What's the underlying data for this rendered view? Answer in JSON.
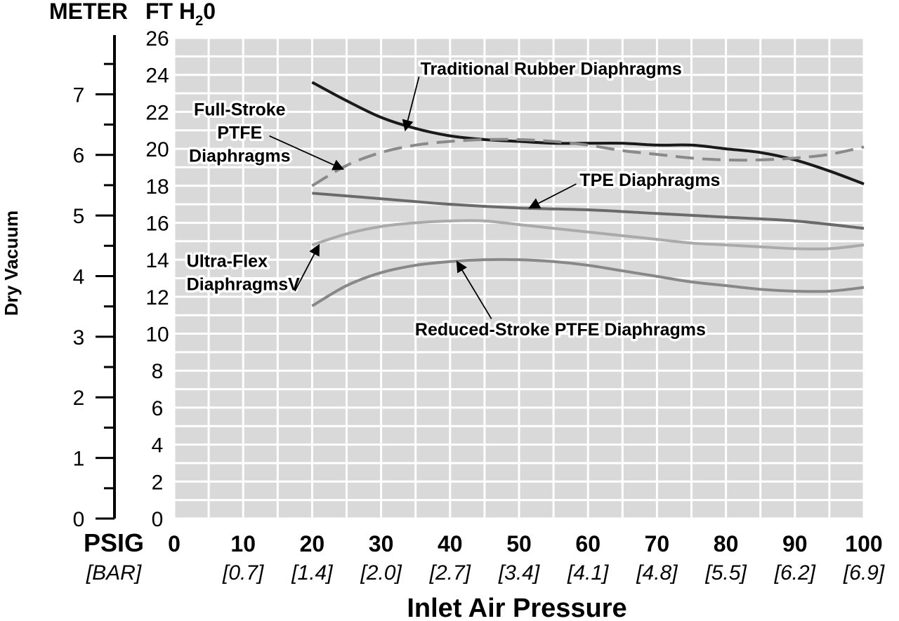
{
  "chart_data": {
    "type": "line",
    "xlabel": "Inlet Air Pressure",
    "ylabel": "Dry Vacuum",
    "x_unit_label": "PSIG",
    "x_unit2_label": "[BAR]",
    "y_unit_left_label": "METER",
    "y_unit_right_label_main": "FT H",
    "y_unit_right_label_sub": "2",
    "y_unit_right_label_tail": "0",
    "xlim": [
      0,
      100
    ],
    "ylim": [
      0,
      26
    ],
    "y2lim": [
      0,
      7.93
    ],
    "grid": true,
    "x_ticks": [
      "0",
      "10",
      "20",
      "30",
      "40",
      "50",
      "60",
      "70",
      "80",
      "90",
      "100"
    ],
    "x_ticks_bar": [
      "",
      "[0.7]",
      "[1.4]",
      "[2.0]",
      "[2.7]",
      "[3.4]",
      "[4.1]",
      "[4.8]",
      "[5.5]",
      "[6.2]",
      "[6.9]"
    ],
    "y_ticks": [
      "0",
      "2",
      "4",
      "6",
      "8",
      "10",
      "12",
      "14",
      "16",
      "18",
      "20",
      "22",
      "24",
      "26"
    ],
    "y2_ticks": [
      "0",
      "1",
      "2",
      "3",
      "4",
      "5",
      "6",
      "7"
    ],
    "series": [
      {
        "name": "Traditional Rubber Diaphragms",
        "color": "#1a1a1a",
        "dashed": false,
        "x": [
          20,
          25,
          30,
          35,
          40,
          45,
          50,
          55,
          60,
          65,
          70,
          75,
          80,
          85,
          90,
          95,
          100
        ],
        "y": [
          23.6,
          22.6,
          21.7,
          21.1,
          20.7,
          20.5,
          20.4,
          20.3,
          20.3,
          20.3,
          20.2,
          20.2,
          20.0,
          19.8,
          19.4,
          18.8,
          18.1
        ]
      },
      {
        "name": "Full-Stroke PTFE Diaphragms",
        "color": "#8a8a8a",
        "dashed": true,
        "x": [
          20,
          25,
          30,
          35,
          40,
          45,
          50,
          55,
          60,
          65,
          70,
          75,
          80,
          85,
          90,
          95,
          100
        ],
        "y": [
          18.0,
          19.1,
          19.8,
          20.2,
          20.4,
          20.5,
          20.5,
          20.4,
          20.2,
          19.9,
          19.7,
          19.5,
          19.4,
          19.4,
          19.5,
          19.7,
          20.1
        ]
      },
      {
        "name": "TPE Diaphragms",
        "color": "#6a6a6a",
        "dashed": false,
        "x": [
          20,
          30,
          40,
          50,
          60,
          70,
          80,
          90,
          100
        ],
        "y": [
          17.6,
          17.3,
          17.0,
          16.8,
          16.7,
          16.5,
          16.3,
          16.1,
          15.7
        ]
      },
      {
        "name": "Ultra-Flex DiaphragmsV",
        "color": "#aaaaaa",
        "dashed": false,
        "x": [
          20,
          25,
          30,
          35,
          40,
          45,
          50,
          55,
          60,
          65,
          70,
          75,
          80,
          85,
          90,
          95,
          100
        ],
        "y": [
          14.8,
          15.4,
          15.8,
          16.0,
          16.1,
          16.1,
          15.9,
          15.7,
          15.5,
          15.3,
          15.1,
          14.9,
          14.8,
          14.7,
          14.6,
          14.6,
          14.8
        ]
      },
      {
        "name": "Reduced-Stroke PTFE Diaphragms",
        "color": "#888888",
        "dashed": false,
        "x": [
          20,
          25,
          30,
          35,
          40,
          45,
          50,
          55,
          60,
          65,
          70,
          75,
          80,
          85,
          90,
          95,
          100
        ],
        "y": [
          11.5,
          12.6,
          13.3,
          13.7,
          13.9,
          14.0,
          14.0,
          13.9,
          13.7,
          13.4,
          13.1,
          12.8,
          12.6,
          12.4,
          12.3,
          12.3,
          12.5
        ]
      }
    ],
    "annotations": [
      {
        "lines": [
          "Traditional Rubber Diaphragms"
        ],
        "anchor": "start",
        "text_at": [
          35.7,
          24.0
        ],
        "arrow_from": [
          35.5,
          23.9
        ],
        "arrow_to": [
          33.5,
          21.0
        ]
      },
      {
        "lines": [
          "Full-Stroke",
          "PTFE",
          "Diaphragms"
        ],
        "anchor": "middle",
        "text_at": [
          9.5,
          21.8
        ],
        "arrow_from": [
          13.8,
          20.7
        ],
        "arrow_to": [
          24.5,
          18.9
        ]
      },
      {
        "lines": [
          "TPE Diaphragms"
        ],
        "anchor": "start",
        "text_at": [
          58.8,
          18.0
        ],
        "arrow_from": [
          58.3,
          18.1
        ],
        "arrow_to": [
          51.5,
          16.8
        ]
      },
      {
        "lines": [
          "Ultra-Flex",
          "DiaphragmsV"
        ],
        "anchor": "start",
        "text_at": [
          1.8,
          13.6
        ],
        "arrow_from": [
          17.5,
          12.3
        ],
        "arrow_to": [
          21.0,
          14.8
        ]
      },
      {
        "lines": [
          "Reduced-Stroke PTFE Diaphragms"
        ],
        "anchor": "middle",
        "text_at": [
          56.0,
          9.9
        ],
        "arrow_from": [
          46.0,
          10.8
        ],
        "arrow_to": [
          41.0,
          13.9
        ]
      }
    ]
  }
}
